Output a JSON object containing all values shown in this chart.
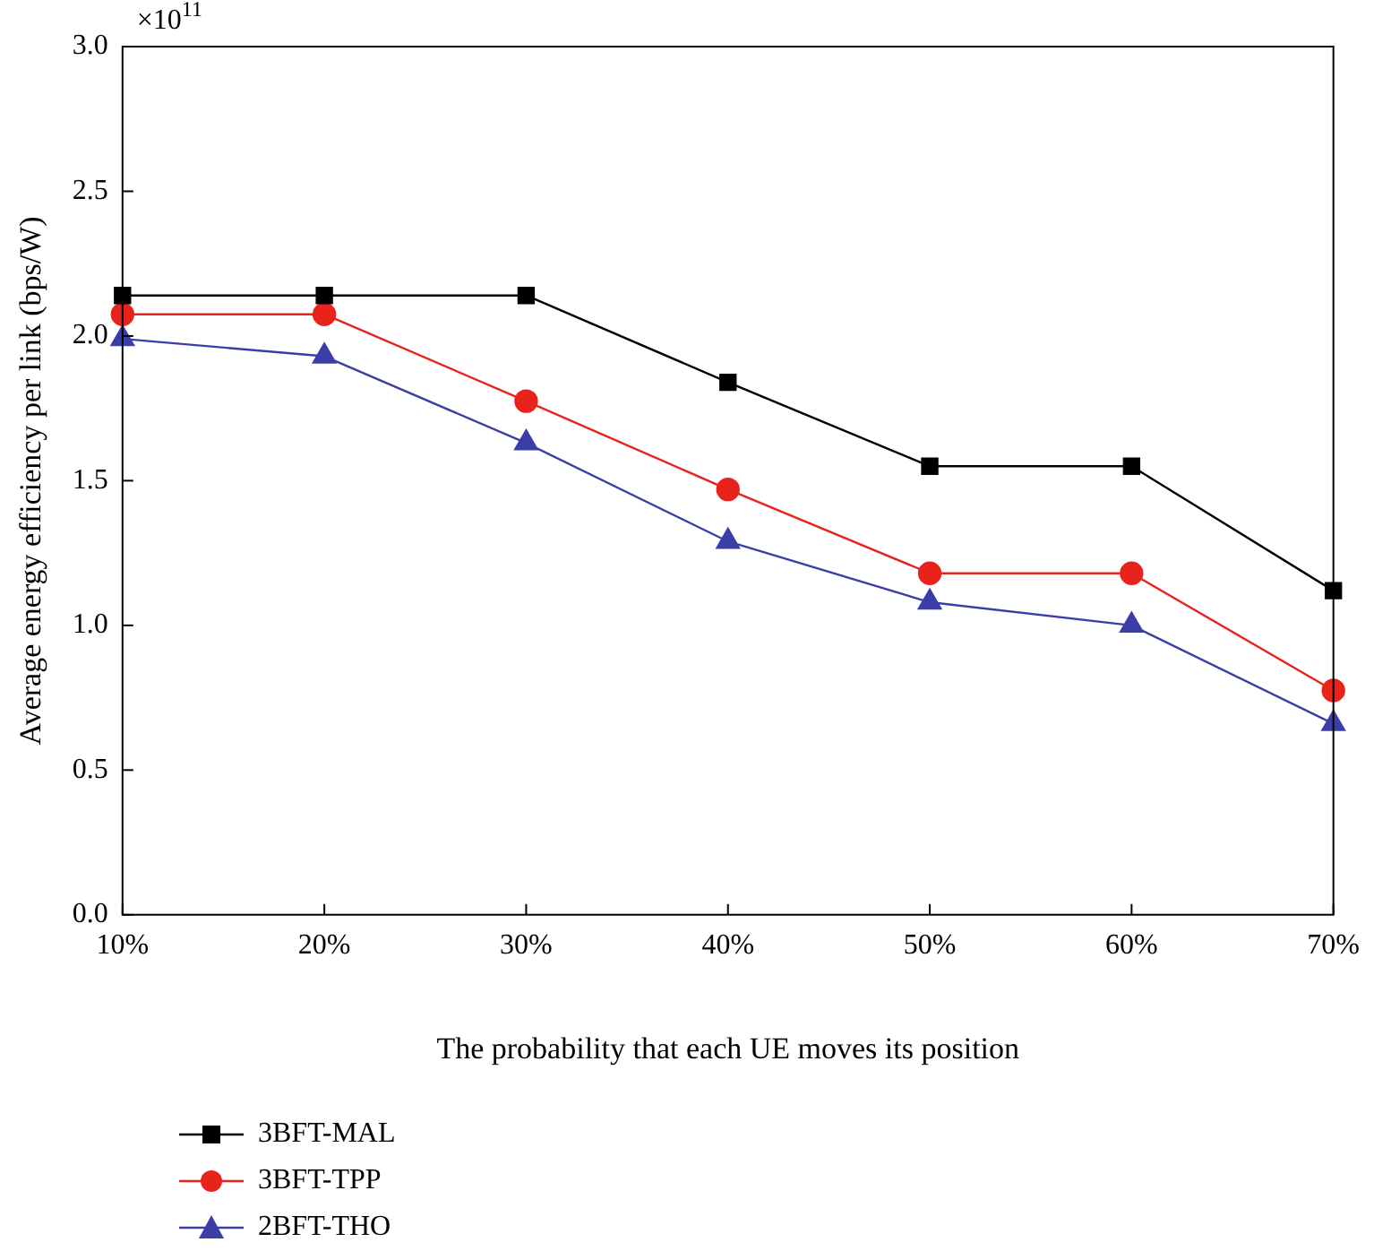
{
  "chart_data": {
    "type": "line",
    "xlabel": "The probability that each UE moves its position",
    "ylabel": "Average energy efficiency per link (bps/W)",
    "annotations": [
      "×10$^{11}$"
    ],
    "categories": [
      "10%",
      "20%",
      "30%",
      "40%",
      "50%",
      "60%",
      "70%"
    ],
    "ylim": [
      0,
      3
    ],
    "yticks": [
      {
        "value": 0,
        "label": "0.0"
      },
      {
        "value": 0.5,
        "label": "0.5"
      },
      {
        "value": 1,
        "label": "1.0"
      },
      {
        "value": 1.5,
        "label": "1.5"
      },
      {
        "value": 2,
        "label": "2.0"
      },
      {
        "value": 2.5,
        "label": "2.5"
      },
      {
        "value": 3,
        "label": "3.0"
      }
    ],
    "grid": false,
    "legend": "bottom left",
    "line_style": "solid",
    "series": [
      {
        "name": "3BFT-MAL",
        "color": "#000000",
        "marker": "square",
        "values": [
          2.14,
          2.14,
          2.14,
          1.84,
          1.55,
          1.55,
          1.12
        ]
      },
      {
        "name": "3BFT-TPP",
        "color": "#e8231c",
        "marker": "circle",
        "values": [
          2.075,
          2.075,
          1.775,
          1.47,
          1.18,
          1.18,
          0.775
        ]
      },
      {
        "name": "2BFT-THO",
        "color": "#3a3ea6",
        "marker": "triangle",
        "values": [
          1.99,
          1.93,
          1.63,
          1.29,
          1.08,
          1.0,
          0.66
        ]
      }
    ]
  }
}
